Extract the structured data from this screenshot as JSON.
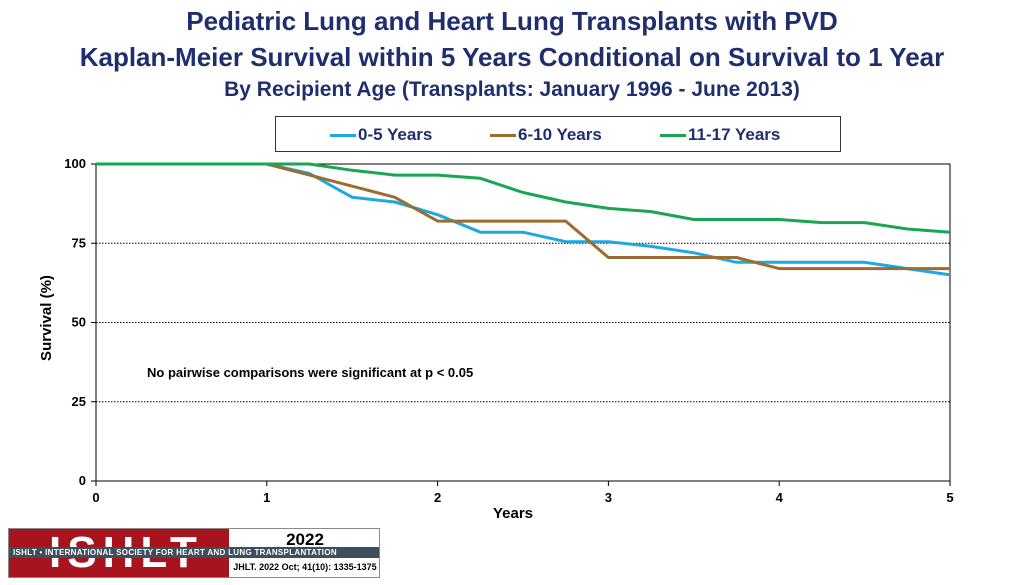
{
  "header": {
    "title_line1": "Pediatric Lung and Heart Lung Transplants with PVD",
    "title_line2": "Kaplan-Meier Survival within 5 Years Conditional on Survival to 1 Year",
    "subtitle": "By Recipient Age (Transplants: January 1996 - June 2013)"
  },
  "chart_data": {
    "type": "line",
    "title": "Kaplan-Meier Survival within 5 Years Conditional on Survival to 1 Year",
    "xlabel": "Years",
    "ylabel": "Survival (%)",
    "xlim": [
      0,
      5
    ],
    "ylim": [
      0,
      100
    ],
    "xticks": [
      0,
      1,
      2,
      3,
      4,
      5
    ],
    "yticks": [
      0,
      25,
      50,
      75,
      100
    ],
    "grid": "horizontal dotted",
    "legend_position": "top",
    "annotation": "No pairwise comparisons were significant at p < 0.05",
    "series": [
      {
        "name": "0-5 Years",
        "color": "#1ea7e1",
        "x": [
          0,
          1,
          1.25,
          1.5,
          1.75,
          2,
          2.25,
          2.5,
          2.75,
          3,
          3.25,
          3.5,
          3.75,
          4,
          4.25,
          4.5,
          4.75,
          5
        ],
        "values": [
          100,
          100,
          97,
          89.5,
          88,
          84,
          78.5,
          78.5,
          75.5,
          75.5,
          74,
          72,
          69,
          69,
          69,
          69,
          67,
          65
        ]
      },
      {
        "name": "6-10 Years",
        "color": "#9b6b2f",
        "x": [
          0,
          1,
          1.25,
          1.5,
          1.75,
          2,
          2.25,
          2.5,
          2.75,
          3,
          3.25,
          3.5,
          3.75,
          4,
          4.25,
          4.5,
          4.75,
          5
        ],
        "values": [
          100,
          100,
          96.5,
          93,
          89.5,
          82,
          82,
          82,
          82,
          70.5,
          70.5,
          70.5,
          70.5,
          67,
          67,
          67,
          67,
          67
        ]
      },
      {
        "name": "11-17 Years",
        "color": "#1aa550",
        "x": [
          0,
          1,
          1.25,
          1.5,
          1.75,
          2,
          2.25,
          2.5,
          2.75,
          3,
          3.25,
          3.5,
          3.75,
          4,
          4.25,
          4.5,
          4.75,
          5
        ],
        "values": [
          100,
          100,
          100,
          98,
          96.5,
          96.5,
          95.5,
          91,
          88,
          86,
          85,
          82.5,
          82.5,
          82.5,
          81.5,
          81.5,
          79.5,
          78.5
        ]
      }
    ]
  },
  "footer": {
    "logo_word": "ISHLT",
    "logo_band": "ISHLT • INTERNATIONAL SOCIETY FOR HEART AND LUNG TRANSPLANTATION",
    "year": "2022",
    "citation": "JHLT. 2022 Oct; 41(10): 1335-1375"
  }
}
